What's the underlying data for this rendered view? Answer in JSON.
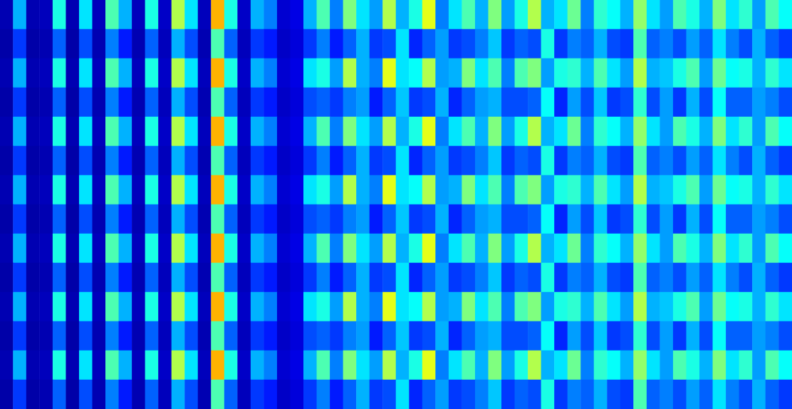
{
  "chart_data": {
    "type": "heatmap",
    "tick_labels": false,
    "color_range": [
      0,
      100
    ],
    "cells": [
      [
        5,
        30,
        5,
        6,
        40,
        5,
        35,
        6,
        45,
        30,
        6,
        40,
        7,
        55,
        35,
        6,
        70,
        40,
        7,
        30,
        25,
        8,
        10,
        30,
        45,
        25,
        50,
        35,
        28,
        55,
        30,
        40,
        60,
        25,
        35,
        45,
        30,
        50,
        28,
        40,
        55,
        30,
        35,
        48,
        25,
        42,
        38,
        30,
        52,
        35,
        28,
        45,
        40,
        30,
        50,
        35,
        42,
        28,
        45,
        38
      ],
      [
        4,
        18,
        4,
        5,
        22,
        4,
        20,
        5,
        25,
        15,
        5,
        22,
        6,
        30,
        20,
        5,
        45,
        22,
        6,
        18,
        15,
        7,
        9,
        18,
        25,
        15,
        22,
        30,
        18,
        20,
        35,
        16,
        22,
        28,
        18,
        20,
        25,
        32,
        18,
        22,
        20,
        40,
        18,
        25,
        22,
        30,
        20,
        18,
        45,
        22,
        25,
        20,
        28,
        22,
        35,
        25,
        20,
        30,
        22,
        18
      ],
      [
        5,
        30,
        5,
        6,
        40,
        5,
        35,
        6,
        45,
        30,
        6,
        40,
        7,
        55,
        35,
        6,
        70,
        40,
        7,
        30,
        25,
        8,
        10,
        35,
        40,
        28,
        55,
        30,
        25,
        60,
        35,
        38,
        55,
        28,
        30,
        50,
        35,
        45,
        25,
        45,
        50,
        28,
        40,
        42,
        30,
        45,
        35,
        28,
        55,
        30,
        32,
        40,
        45,
        28,
        48,
        38,
        40,
        30,
        42,
        35
      ],
      [
        4,
        18,
        4,
        5,
        22,
        4,
        20,
        5,
        25,
        15,
        5,
        22,
        6,
        30,
        20,
        5,
        45,
        22,
        6,
        18,
        15,
        7,
        9,
        20,
        22,
        18,
        25,
        28,
        15,
        22,
        32,
        18,
        20,
        30,
        16,
        22,
        28,
        30,
        20,
        20,
        22,
        38,
        16,
        28,
        20,
        32,
        18,
        20,
        42,
        20,
        28,
        18,
        30,
        20,
        38,
        22,
        22,
        28,
        25,
        20
      ],
      [
        5,
        30,
        5,
        6,
        40,
        5,
        35,
        6,
        45,
        30,
        6,
        40,
        7,
        55,
        35,
        6,
        70,
        40,
        7,
        30,
        25,
        8,
        10,
        30,
        45,
        25,
        50,
        35,
        28,
        55,
        30,
        40,
        60,
        25,
        35,
        45,
        30,
        50,
        28,
        40,
        55,
        30,
        35,
        48,
        25,
        42,
        38,
        30,
        52,
        35,
        28,
        45,
        40,
        30,
        50,
        35,
        42,
        28,
        45,
        38
      ],
      [
        4,
        18,
        4,
        5,
        22,
        4,
        20,
        5,
        25,
        15,
        5,
        22,
        6,
        30,
        20,
        5,
        45,
        22,
        6,
        18,
        15,
        7,
        9,
        18,
        25,
        15,
        22,
        30,
        18,
        20,
        35,
        16,
        22,
        28,
        18,
        20,
        25,
        32,
        18,
        22,
        20,
        40,
        18,
        25,
        22,
        30,
        20,
        18,
        45,
        22,
        25,
        20,
        28,
        22,
        35,
        25,
        20,
        30,
        22,
        18
      ],
      [
        5,
        30,
        5,
        6,
        40,
        5,
        35,
        6,
        45,
        30,
        6,
        40,
        7,
        55,
        35,
        6,
        70,
        40,
        7,
        30,
        25,
        8,
        10,
        35,
        40,
        28,
        55,
        30,
        25,
        60,
        35,
        38,
        55,
        28,
        30,
        50,
        35,
        45,
        25,
        45,
        50,
        28,
        40,
        42,
        30,
        45,
        35,
        28,
        55,
        30,
        32,
        40,
        45,
        28,
        48,
        38,
        40,
        30,
        42,
        35
      ],
      [
        4,
        18,
        4,
        5,
        22,
        4,
        20,
        5,
        25,
        15,
        5,
        22,
        6,
        30,
        20,
        5,
        45,
        22,
        6,
        18,
        15,
        7,
        9,
        20,
        22,
        18,
        25,
        28,
        15,
        22,
        32,
        18,
        20,
        30,
        16,
        22,
        28,
        30,
        20,
        20,
        22,
        38,
        16,
        28,
        20,
        32,
        18,
        20,
        42,
        20,
        28,
        18,
        30,
        20,
        38,
        22,
        22,
        28,
        25,
        20
      ],
      [
        5,
        30,
        5,
        6,
        40,
        5,
        35,
        6,
        45,
        30,
        6,
        40,
        7,
        55,
        35,
        6,
        70,
        40,
        7,
        30,
        25,
        8,
        10,
        30,
        45,
        25,
        50,
        35,
        28,
        55,
        30,
        40,
        60,
        25,
        35,
        45,
        30,
        50,
        28,
        40,
        55,
        30,
        35,
        48,
        25,
        42,
        38,
        30,
        52,
        35,
        28,
        45,
        40,
        30,
        50,
        35,
        42,
        28,
        45,
        38
      ],
      [
        4,
        18,
        4,
        5,
        22,
        4,
        20,
        5,
        25,
        15,
        5,
        22,
        6,
        30,
        20,
        5,
        45,
        22,
        6,
        18,
        15,
        7,
        9,
        18,
        25,
        15,
        22,
        30,
        18,
        20,
        35,
        16,
        22,
        28,
        18,
        20,
        25,
        32,
        18,
        22,
        20,
        40,
        18,
        25,
        22,
        30,
        20,
        18,
        45,
        22,
        25,
        20,
        28,
        22,
        35,
        25,
        20,
        30,
        22,
        18
      ],
      [
        5,
        30,
        5,
        6,
        40,
        5,
        35,
        6,
        45,
        30,
        6,
        40,
        7,
        55,
        35,
        6,
        70,
        40,
        7,
        30,
        25,
        8,
        10,
        35,
        40,
        28,
        55,
        30,
        25,
        60,
        35,
        38,
        55,
        28,
        30,
        50,
        35,
        45,
        25,
        45,
        50,
        28,
        40,
        42,
        30,
        45,
        35,
        28,
        55,
        30,
        32,
        40,
        45,
        28,
        48,
        38,
        40,
        30,
        42,
        35
      ],
      [
        4,
        18,
        4,
        5,
        22,
        4,
        20,
        5,
        25,
        15,
        5,
        22,
        6,
        30,
        20,
        5,
        45,
        22,
        6,
        18,
        15,
        7,
        9,
        20,
        22,
        18,
        25,
        28,
        15,
        22,
        32,
        18,
        20,
        30,
        16,
        22,
        28,
        30,
        20,
        20,
        22,
        38,
        16,
        28,
        20,
        32,
        18,
        20,
        42,
        20,
        28,
        18,
        30,
        20,
        38,
        22,
        22,
        28,
        25,
        20
      ],
      [
        5,
        30,
        5,
        6,
        40,
        5,
        35,
        6,
        45,
        30,
        6,
        40,
        7,
        55,
        35,
        6,
        70,
        40,
        7,
        30,
        25,
        8,
        10,
        30,
        45,
        25,
        50,
        35,
        28,
        55,
        30,
        40,
        60,
        25,
        35,
        45,
        30,
        50,
        28,
        40,
        55,
        30,
        35,
        48,
        25,
        42,
        38,
        30,
        52,
        35,
        28,
        45,
        40,
        30,
        50,
        35,
        42,
        28,
        45,
        38
      ],
      [
        4,
        18,
        4,
        5,
        22,
        4,
        20,
        5,
        25,
        15,
        5,
        22,
        6,
        30,
        20,
        5,
        45,
        22,
        6,
        18,
        15,
        7,
        9,
        18,
        25,
        15,
        22,
        30,
        18,
        20,
        35,
        16,
        22,
        28,
        18,
        20,
        25,
        32,
        18,
        22,
        20,
        40,
        18,
        25,
        22,
        30,
        20,
        18,
        45,
        22,
        25,
        20,
        28,
        22,
        35,
        25,
        20,
        30,
        22,
        18
      ]
    ]
  }
}
